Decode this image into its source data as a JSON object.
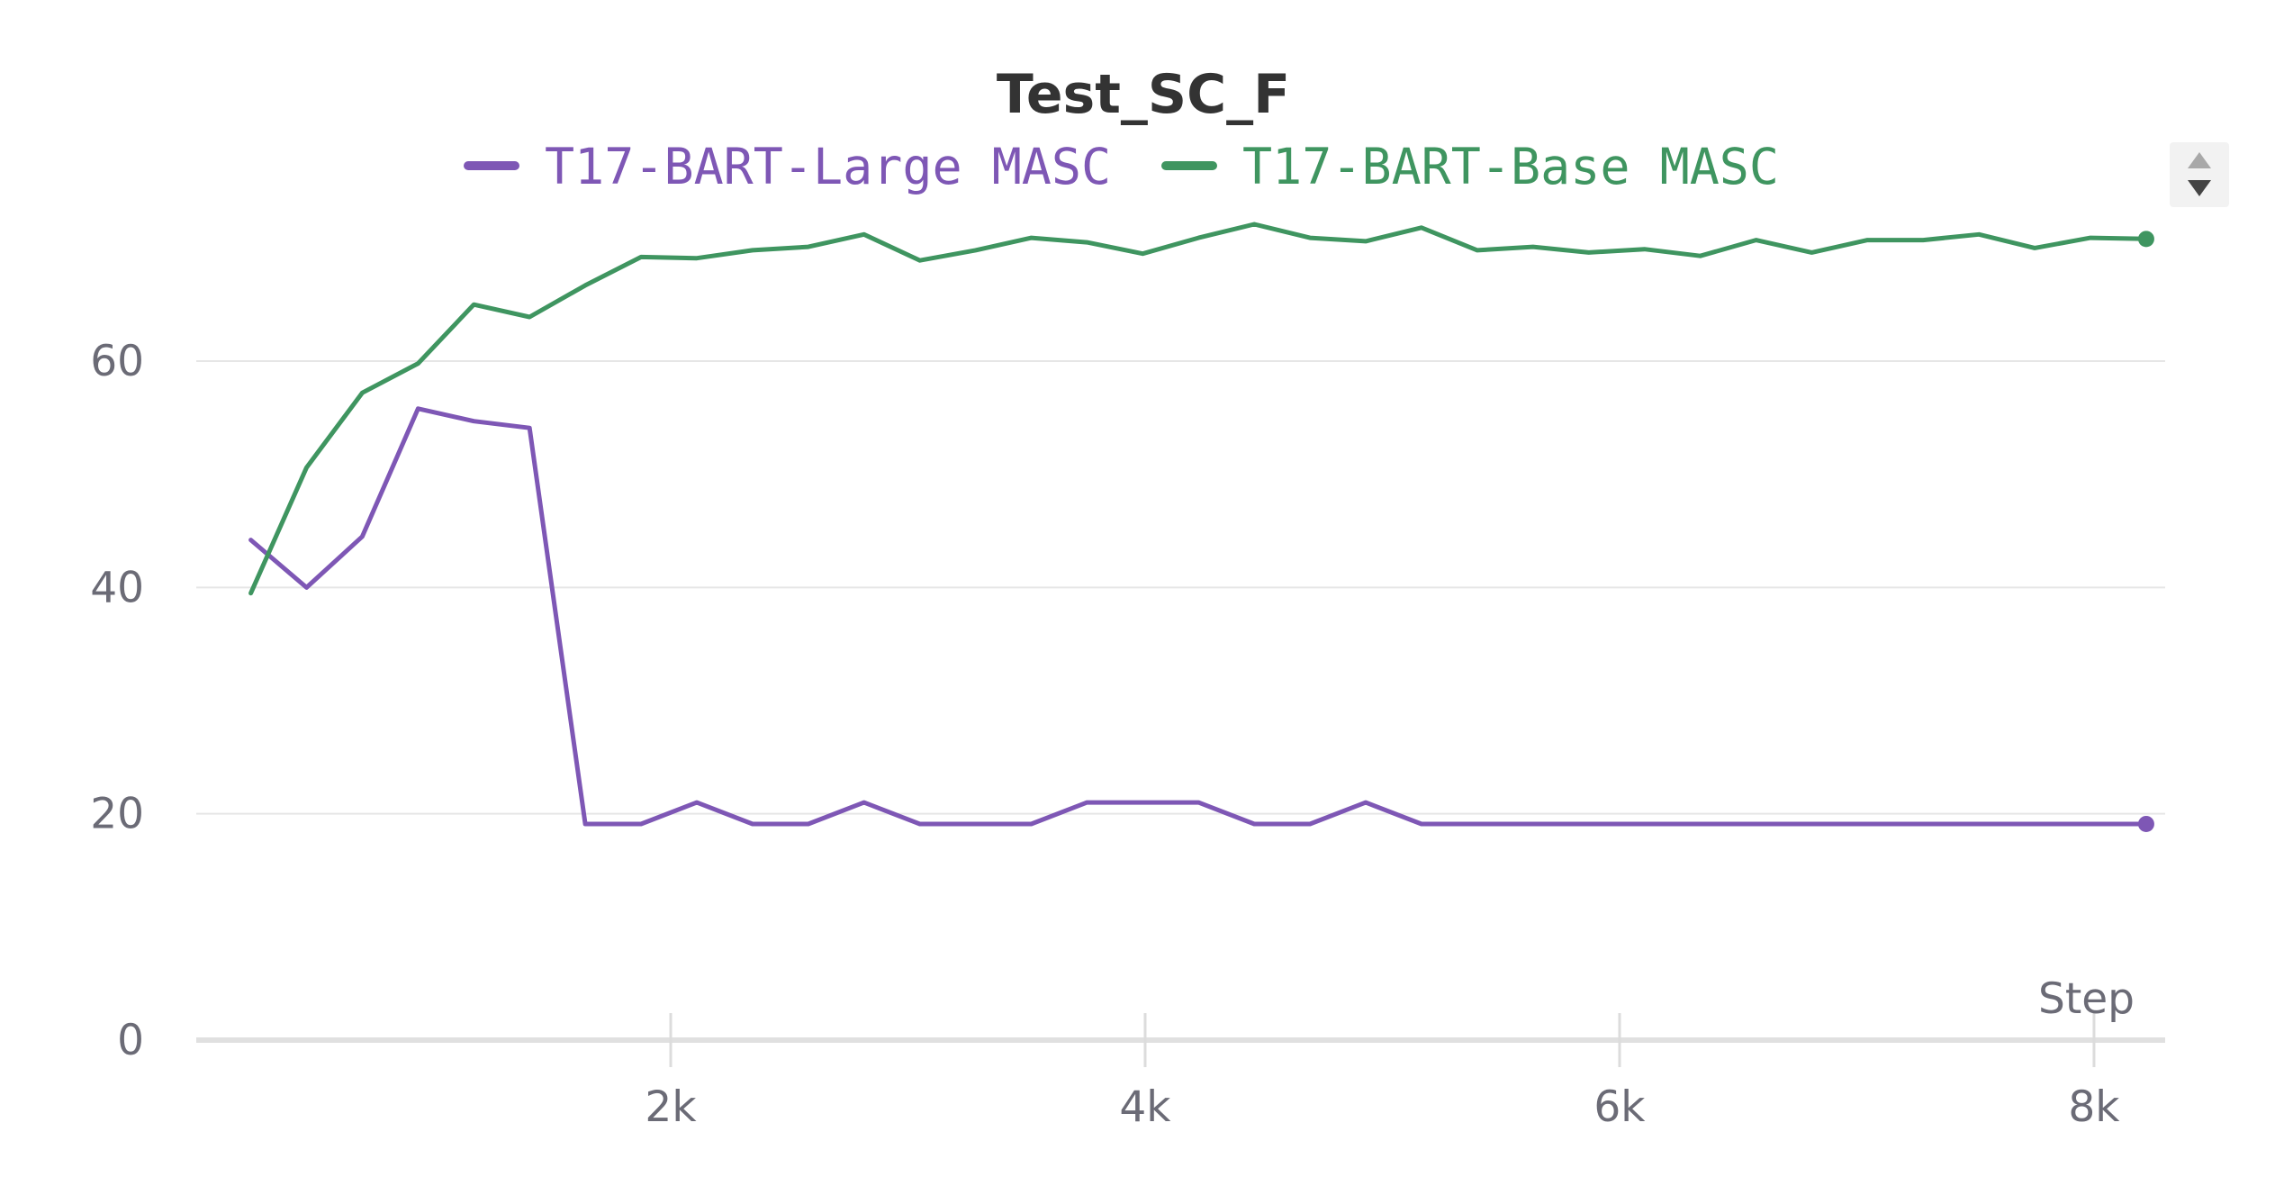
{
  "chart_data": {
    "type": "line",
    "title": "Test_SC_F",
    "xlabel": "Step",
    "ylabel": "",
    "xlim": [
      0,
      8300
    ],
    "ylim": [
      0,
      76
    ],
    "yticks": [
      0,
      20,
      40,
      60
    ],
    "xticks": [
      2000,
      4000,
      6000,
      8000
    ],
    "xtick_labels": [
      "2k",
      "4k",
      "6k",
      "8k"
    ],
    "ytick_labels": [
      "0",
      "20",
      "40",
      "60"
    ],
    "grid": true,
    "legend_position": "top-center",
    "x": [
      230,
      465,
      700,
      935,
      1170,
      1405,
      1640,
      1875,
      2110,
      2345,
      2580,
      2815,
      3050,
      3285,
      3520,
      3755,
      3990,
      4225,
      4460,
      4695,
      4930,
      5165,
      5400,
      5635,
      5870,
      6105,
      6340,
      6575,
      6810,
      7045,
      7280,
      7515,
      7750,
      7985,
      8220
    ],
    "series": [
      {
        "name": "T17-BART-Large MASC",
        "color": "#7e57b5",
        "values": [
          44.2,
          40.0,
          44.5,
          55.8,
          54.7,
          54.1,
          19.1,
          19.1,
          21.0,
          19.1,
          19.1,
          21.0,
          19.1,
          19.1,
          19.1,
          21.0,
          21.0,
          21.0,
          19.1,
          19.1,
          21.0,
          19.1,
          19.1,
          19.1,
          19.1,
          19.1,
          19.1,
          19.1,
          19.1,
          19.1,
          19.1,
          19.1,
          19.1,
          19.1,
          19.1
        ]
      },
      {
        "name": "T17-BART-Base MASC",
        "color": "#3f9560",
        "values": [
          39.5,
          50.6,
          57.2,
          59.8,
          65.0,
          63.9,
          66.7,
          69.2,
          69.1,
          69.8,
          70.1,
          71.2,
          68.9,
          69.8,
          70.9,
          70.5,
          69.5,
          70.9,
          72.1,
          70.9,
          70.6,
          71.8,
          69.8,
          70.1,
          69.6,
          69.9,
          69.3,
          70.7,
          69.6,
          70.7,
          70.7,
          71.2,
          70.0,
          70.9,
          70.8
        ]
      }
    ]
  }
}
